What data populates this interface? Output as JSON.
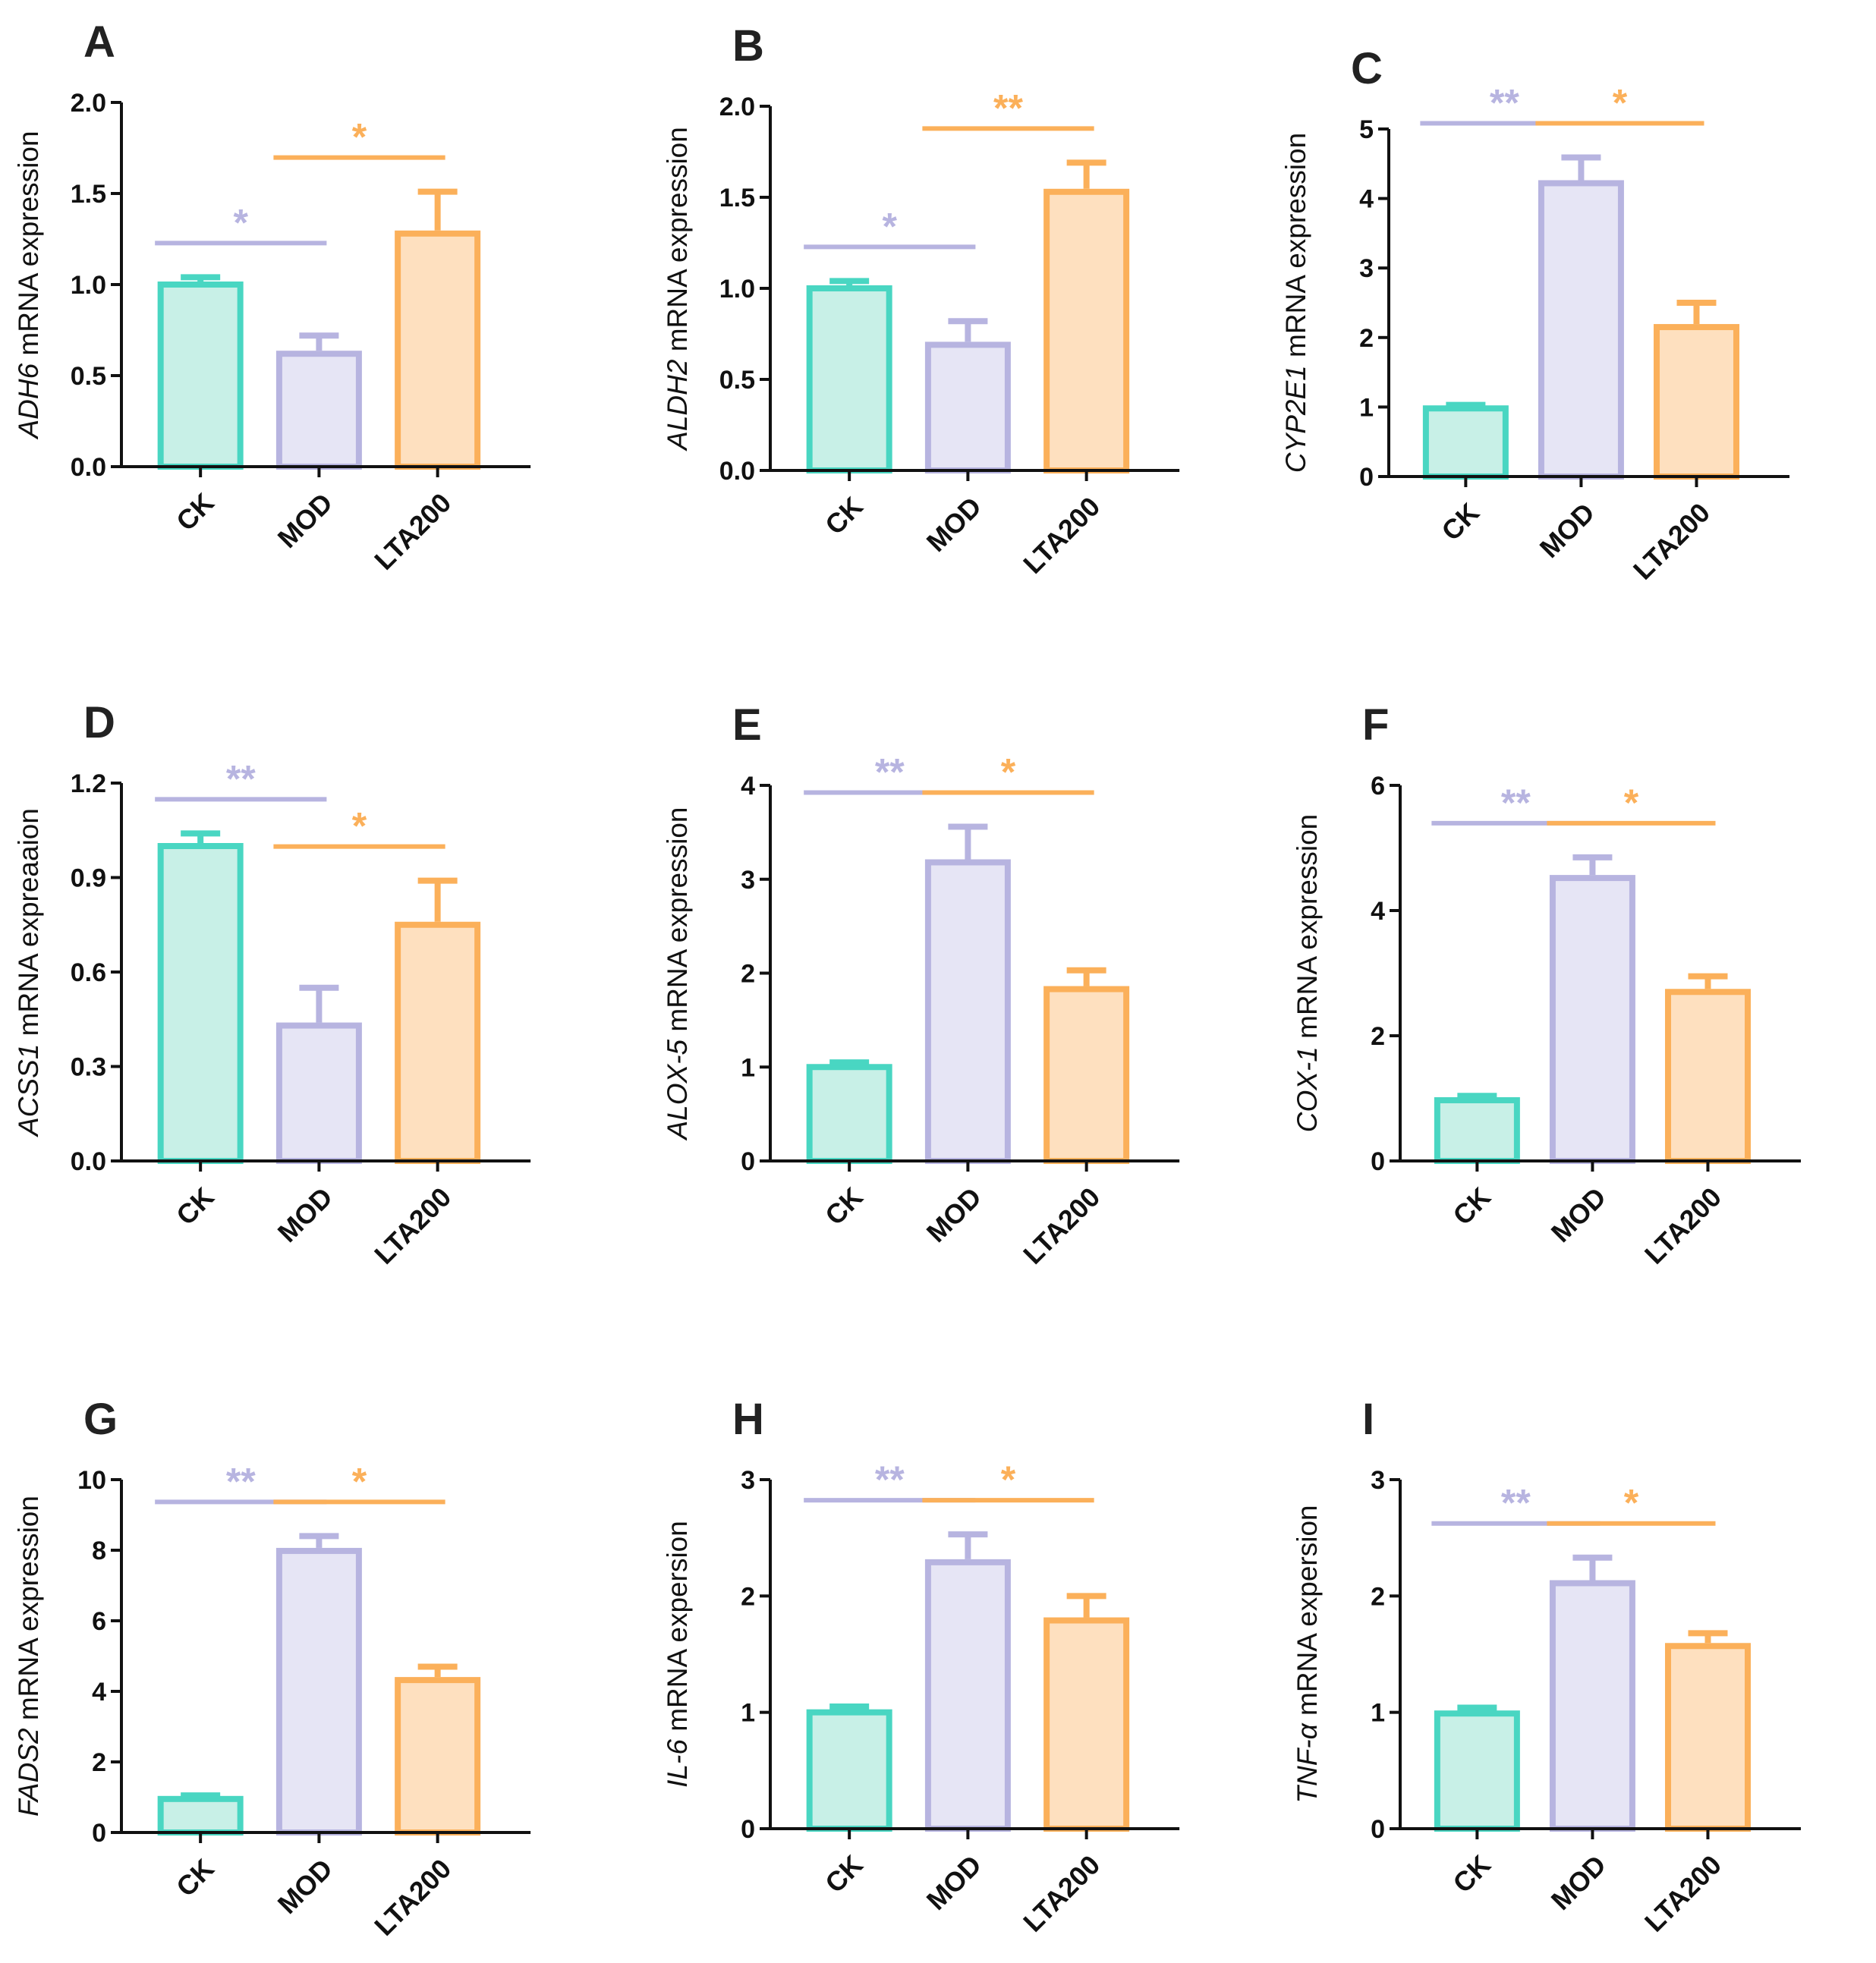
{
  "chart_data": [
    {
      "panel": "A",
      "type": "bar",
      "gene": "ADH6",
      "ylabel_suffix": " mRNA expression",
      "categories": [
        "CK",
        "MOD",
        "LTA200"
      ],
      "values": [
        1.0,
        0.62,
        1.28
      ],
      "errors": [
        0.04,
        0.1,
        0.23
      ],
      "ylim": [
        0,
        2.0
      ],
      "yticks": [
        "0.0",
        "0.5",
        "1.0",
        "1.5",
        "2.0"
      ],
      "significance": [
        {
          "from": 0,
          "to": 1,
          "label": "*",
          "color": "#b7b4e0"
        },
        {
          "from": 1,
          "to": 2,
          "label": "*",
          "color": "#fbb05a"
        }
      ]
    },
    {
      "panel": "B",
      "type": "bar",
      "gene": "ALDH2",
      "ylabel_suffix": " mRNA expression",
      "categories": [
        "CK",
        "MOD",
        "LTA200"
      ],
      "values": [
        1.0,
        0.69,
        1.53
      ],
      "errors": [
        0.04,
        0.13,
        0.16
      ],
      "ylim": [
        0,
        2.0
      ],
      "yticks": [
        "0.0",
        "0.5",
        "1.0",
        "1.5",
        "2.0"
      ],
      "significance": [
        {
          "from": 0,
          "to": 1,
          "label": "*",
          "color": "#b7b4e0"
        },
        {
          "from": 1,
          "to": 2,
          "label": "**",
          "color": "#fbb05a"
        }
      ]
    },
    {
      "panel": "C",
      "type": "bar",
      "gene": "CYP2E1",
      "ylabel_suffix": " mRNA expression",
      "categories": [
        "CK",
        "MOD",
        "LTA200"
      ],
      "values": [
        0.98,
        4.22,
        2.15
      ],
      "errors": [
        0.05,
        0.37,
        0.35
      ],
      "ylim": [
        0,
        5
      ],
      "yticks": [
        "0",
        "1",
        "2",
        "3",
        "4",
        "5"
      ],
      "significance": [
        {
          "from": 0,
          "to": 1,
          "label": "**",
          "color": "#b7b4e0"
        },
        {
          "from": 1,
          "to": 2,
          "label": "*",
          "color": "#fbb05a"
        }
      ]
    },
    {
      "panel": "D",
      "type": "bar",
      "gene": "ACSS1",
      "ylabel_suffix": " mRNA expreaaion",
      "categories": [
        "CK",
        "MOD",
        "LTA200"
      ],
      "values": [
        1.0,
        0.43,
        0.75
      ],
      "errors": [
        0.04,
        0.12,
        0.14
      ],
      "ylim": [
        0,
        1.2
      ],
      "yticks": [
        "0.0",
        "0.3",
        "0.6",
        "0.9",
        "1.2"
      ],
      "significance": [
        {
          "from": 0,
          "to": 1,
          "label": "**",
          "color": "#b7b4e0"
        },
        {
          "from": 1,
          "to": 2,
          "label": "*",
          "color": "#fbb05a"
        }
      ]
    },
    {
      "panel": "E",
      "type": "bar",
      "gene": "ALOX-5",
      "ylabel_suffix": " mRNA expression",
      "categories": [
        "CK",
        "MOD",
        "LTA200"
      ],
      "values": [
        1.0,
        3.18,
        1.83
      ],
      "errors": [
        0.05,
        0.38,
        0.2
      ],
      "ylim": [
        0,
        4
      ],
      "yticks": [
        "0",
        "1",
        "2",
        "3",
        "4"
      ],
      "significance": [
        {
          "from": 0,
          "to": 1,
          "label": "**",
          "color": "#b7b4e0"
        },
        {
          "from": 1,
          "to": 2,
          "label": "*",
          "color": "#fbb05a"
        }
      ]
    },
    {
      "panel": "F",
      "type": "bar",
      "gene": "COX-1",
      "ylabel_suffix": " mRNA expression",
      "categories": [
        "CK",
        "MOD",
        "LTA200"
      ],
      "values": [
        0.97,
        4.52,
        2.7
      ],
      "errors": [
        0.07,
        0.33,
        0.25
      ],
      "ylim": [
        0,
        6
      ],
      "yticks": [
        "0",
        "2",
        "4",
        "6"
      ],
      "significance": [
        {
          "from": 0,
          "to": 1,
          "label": "**",
          "color": "#b7b4e0"
        },
        {
          "from": 1,
          "to": 2,
          "label": "*",
          "color": "#fbb05a"
        }
      ]
    },
    {
      "panel": "G",
      "type": "bar",
      "gene": "FADS2",
      "ylabel_suffix": " mRNA expression",
      "categories": [
        "CK",
        "MOD",
        "LTA200"
      ],
      "values": [
        0.95,
        7.98,
        4.32
      ],
      "errors": [
        0.1,
        0.42,
        0.38
      ],
      "ylim": [
        0,
        10
      ],
      "yticks": [
        "0",
        "2",
        "4",
        "6",
        "8",
        "10"
      ],
      "significance": [
        {
          "from": 0,
          "to": 1,
          "label": "**",
          "color": "#b7b4e0"
        },
        {
          "from": 1,
          "to": 2,
          "label": "*",
          "color": "#fbb05a"
        }
      ]
    },
    {
      "panel": "H",
      "type": "bar",
      "gene": "IL-6",
      "ylabel_suffix": " mRNA expersion",
      "categories": [
        "CK",
        "MOD",
        "LTA200"
      ],
      "values": [
        1.0,
        2.29,
        1.79
      ],
      "errors": [
        0.05,
        0.24,
        0.21
      ],
      "ylim": [
        0,
        3
      ],
      "yticks": [
        "0",
        "1",
        "2",
        "3"
      ],
      "significance": [
        {
          "from": 0,
          "to": 1,
          "label": "**",
          "color": "#b7b4e0"
        },
        {
          "from": 1,
          "to": 2,
          "label": "*",
          "color": "#fbb05a"
        }
      ]
    },
    {
      "panel": "I",
      "type": "bar",
      "gene": "TNF-α",
      "ylabel_suffix": " mRNA expersion",
      "categories": [
        "CK",
        "MOD",
        "LTA200"
      ],
      "values": [
        0.99,
        2.11,
        1.57
      ],
      "errors": [
        0.05,
        0.22,
        0.11
      ],
      "ylim": [
        0,
        3
      ],
      "yticks": [
        "0",
        "1",
        "2",
        "3"
      ],
      "significance": [
        {
          "from": 0,
          "to": 1,
          "label": "**",
          "color": "#b7b4e0"
        },
        {
          "from": 1,
          "to": 2,
          "label": "*",
          "color": "#fbb05a"
        }
      ]
    }
  ],
  "styles": {
    "bar_stroke": [
      "#49d6c2",
      "#b7b4e0",
      "#fbb05a"
    ],
    "bar_fill": [
      "#c8f0e7",
      "#e6e5f5",
      "#fee0bf"
    ],
    "axis_color": "#111111"
  }
}
